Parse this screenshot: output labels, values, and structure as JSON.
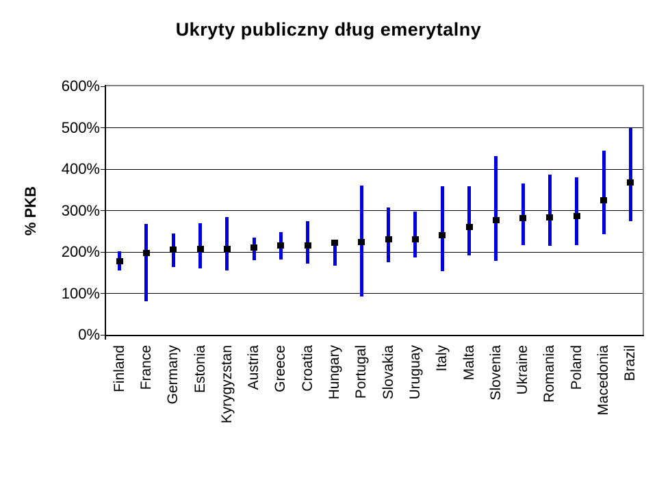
{
  "chart_data": {
    "type": "scatter",
    "subtype": "high-low-range-with-marker",
    "title": "Ukryty publiczny dług emerytalny",
    "ylabel": "% PKB",
    "xlabel": "",
    "categories": [
      "Finland",
      "France",
      "Germany",
      "Estonia",
      "Kyrygyzstan",
      "Austria",
      "Greece",
      "Croatia",
      "Hungary",
      "Portugal",
      "Slovakia",
      "Uruguay",
      "Italy",
      "Malta",
      "Slovenia",
      "Ukraine",
      "Romania",
      "Poland",
      "Macedonia",
      "Brazil"
    ],
    "series": [
      {
        "name": "low",
        "values": [
          155,
          81,
          164,
          161,
          156,
          180,
          181,
          172,
          167,
          93,
          175,
          186,
          154,
          192,
          178,
          216,
          215,
          216,
          243,
          274
        ]
      },
      {
        "name": "mid",
        "values": [
          178,
          197,
          206,
          207,
          208,
          210,
          215,
          215,
          223,
          224,
          230,
          231,
          241,
          260,
          277,
          281,
          283,
          286,
          324,
          367
        ]
      },
      {
        "name": "high",
        "values": [
          201,
          268,
          245,
          270,
          284,
          235,
          248,
          275,
          228,
          361,
          308,
          298,
          358,
          358,
          432,
          366,
          387,
          380,
          444,
          500
        ]
      }
    ],
    "ylim": [
      0,
      600
    ],
    "yticks": [
      {
        "value": 0,
        "label": "0%"
      },
      {
        "value": 100,
        "label": "100%"
      },
      {
        "value": 200,
        "label": "200%"
      },
      {
        "value": 300,
        "label": "300%"
      },
      {
        "value": 400,
        "label": "400%"
      },
      {
        "value": 500,
        "label": "500%"
      },
      {
        "value": 600,
        "label": "600%"
      }
    ],
    "grid": true,
    "legend": "none",
    "colors": {
      "bar": "#0000DE",
      "marker": "#000000",
      "gridline": "#000000",
      "axis": "#000000",
      "plot_border": "#808080",
      "background": "#FFFFFF",
      "text": "#000000"
    }
  }
}
